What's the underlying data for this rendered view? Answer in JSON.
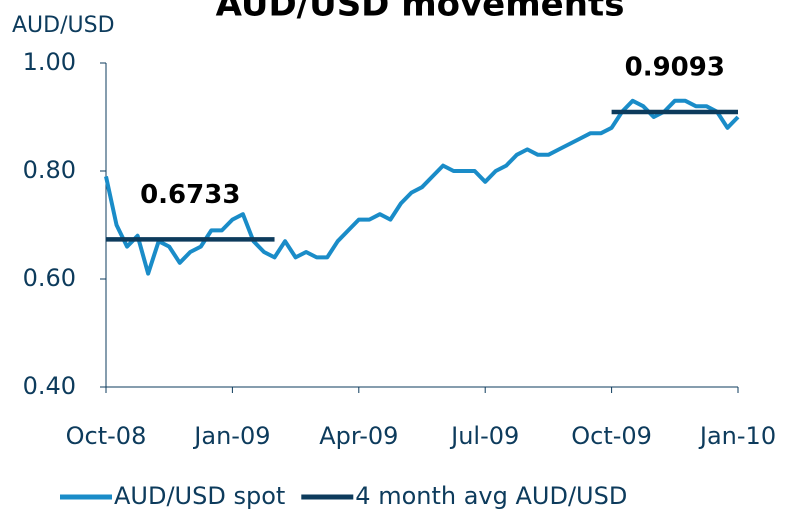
{
  "chart_data": {
    "type": "line",
    "title": "AUD/USD movements",
    "y_label": "AUD/USD",
    "categories": [
      "Oct-08",
      null,
      null,
      null,
      null,
      null,
      null,
      null,
      null,
      null,
      null,
      null,
      "Jan-09",
      null,
      null,
      null,
      null,
      null,
      null,
      null,
      null,
      null,
      null,
      null,
      "Apr-09",
      null,
      null,
      null,
      null,
      null,
      null,
      null,
      null,
      null,
      null,
      null,
      "Jul-09",
      null,
      null,
      null,
      null,
      null,
      null,
      null,
      null,
      null,
      null,
      null,
      "Oct-09",
      null,
      null,
      null,
      null,
      null,
      null,
      null,
      null,
      null,
      null,
      null,
      "Jan-10"
    ],
    "series": [
      {
        "name": "AUD/USD spot",
        "color": "#1a8cc8",
        "values": [
          0.79,
          0.7,
          0.66,
          0.68,
          0.61,
          0.67,
          0.66,
          0.63,
          0.65,
          0.66,
          0.69,
          0.69,
          0.71,
          0.72,
          0.67,
          0.65,
          0.64,
          0.67,
          0.64,
          0.65,
          0.64,
          0.64,
          0.67,
          0.69,
          0.71,
          0.71,
          0.72,
          0.71,
          0.74,
          0.76,
          0.77,
          0.79,
          0.81,
          0.8,
          0.8,
          0.8,
          0.78,
          0.8,
          0.81,
          0.83,
          0.84,
          0.83,
          0.83,
          0.84,
          0.85,
          0.86,
          0.87,
          0.87,
          0.88,
          0.91,
          0.93,
          0.92,
          0.9,
          0.91,
          0.93,
          0.93,
          0.92,
          0.92,
          0.91,
          0.88,
          0.9
        ]
      },
      {
        "name": "4 month avg AUD/USD",
        "color": "#0d3b5c",
        "values": [
          0.6733,
          0.6733,
          0.6733,
          0.6733,
          0.6733,
          0.6733,
          0.6733,
          0.6733,
          0.6733,
          0.6733,
          0.6733,
          0.6733,
          0.6733,
          0.6733,
          0.6733,
          0.6733,
          0.6733,
          null,
          null,
          null,
          null,
          null,
          null,
          null,
          null,
          null,
          null,
          null,
          null,
          null,
          null,
          null,
          null,
          null,
          null,
          null,
          null,
          null,
          null,
          null,
          null,
          null,
          null,
          null,
          null,
          null,
          null,
          null,
          0.9093,
          0.9093,
          0.9093,
          0.9093,
          0.9093,
          0.9093,
          0.9093,
          0.9093,
          0.9093,
          0.9093,
          0.9093,
          0.9093,
          0.9093
        ]
      }
    ],
    "ylim": [
      0.4,
      1.0
    ],
    "yticks": [
      {
        "value": 0.4,
        "label": "0.40"
      },
      {
        "value": 0.6,
        "label": "0.60"
      },
      {
        "value": 0.8,
        "label": "0.80"
      },
      {
        "value": 1.0,
        "label": "1.00"
      }
    ],
    "grid": false,
    "legend": "bottom"
  }
}
